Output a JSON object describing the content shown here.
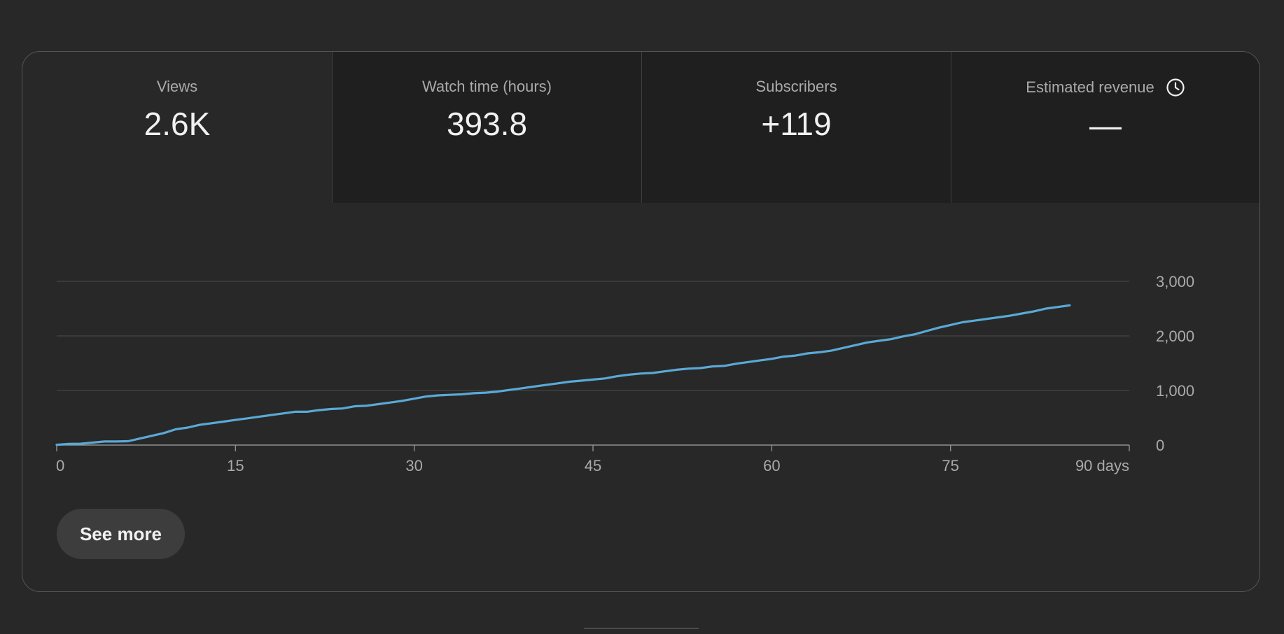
{
  "metrics": [
    {
      "label": "Views",
      "value": "2.6K",
      "selected": true
    },
    {
      "label": "Watch time (hours)",
      "value": "393.8",
      "selected": false
    },
    {
      "label": "Subscribers",
      "value": "+119",
      "selected": false
    },
    {
      "label": "Estimated revenue",
      "value": "—",
      "selected": false,
      "icon": "clock-icon"
    }
  ],
  "see_more_label": "See more",
  "colors": {
    "background": "#282828",
    "line": "#5aa9d6"
  },
  "chart_data": {
    "type": "line",
    "x_ticks": [
      "0",
      "15",
      "30",
      "45",
      "60",
      "75",
      "90 days"
    ],
    "x_tick_values": [
      0,
      15,
      30,
      45,
      60,
      75,
      90
    ],
    "y_ticks": [
      "0",
      "1,000",
      "2,000",
      "3,000"
    ],
    "y_tick_values": [
      0,
      1000,
      2000,
      3000
    ],
    "xlim": [
      0,
      90
    ],
    "ylim": [
      0,
      3000
    ],
    "grid": true,
    "series": [
      {
        "x": [
          0,
          1,
          2,
          3,
          4,
          5,
          6,
          7,
          8,
          9,
          10,
          11,
          12,
          13,
          14,
          15,
          16,
          17,
          18,
          19,
          20,
          21,
          22,
          23,
          24,
          25,
          26,
          27,
          28,
          29,
          30,
          31,
          32,
          33,
          34,
          35,
          36,
          37,
          38,
          39,
          40,
          41,
          42,
          43,
          44,
          45,
          46,
          47,
          48,
          49,
          50,
          51,
          52,
          53,
          54,
          55,
          56,
          57,
          58,
          59,
          60,
          61,
          62,
          63,
          64,
          65,
          66,
          67,
          68,
          69,
          70,
          71,
          72,
          73,
          74,
          75,
          76,
          77,
          78,
          79,
          80,
          81,
          82,
          83,
          84,
          85
        ],
        "y": [
          5,
          20,
          25,
          45,
          65,
          65,
          70,
          120,
          170,
          220,
          290,
          320,
          370,
          400,
          430,
          460,
          490,
          520,
          550,
          580,
          610,
          610,
          640,
          660,
          670,
          710,
          720,
          750,
          780,
          810,
          850,
          890,
          910,
          920,
          930,
          950,
          960,
          980,
          1010,
          1040,
          1070,
          1100,
          1130,
          1160,
          1180,
          1200,
          1220,
          1260,
          1290,
          1310,
          1320,
          1350,
          1380,
          1400,
          1410,
          1440,
          1450,
          1490,
          1520,
          1550,
          1580,
          1620,
          1640,
          1680,
          1700,
          1730,
          1780,
          1830,
          1880,
          1910,
          1940,
          1990,
          2030,
          2090,
          2150,
          2200,
          2250,
          2280,
          2310,
          2340,
          2370,
          2410,
          2450,
          2500,
          2530,
          2560
        ]
      }
    ]
  }
}
